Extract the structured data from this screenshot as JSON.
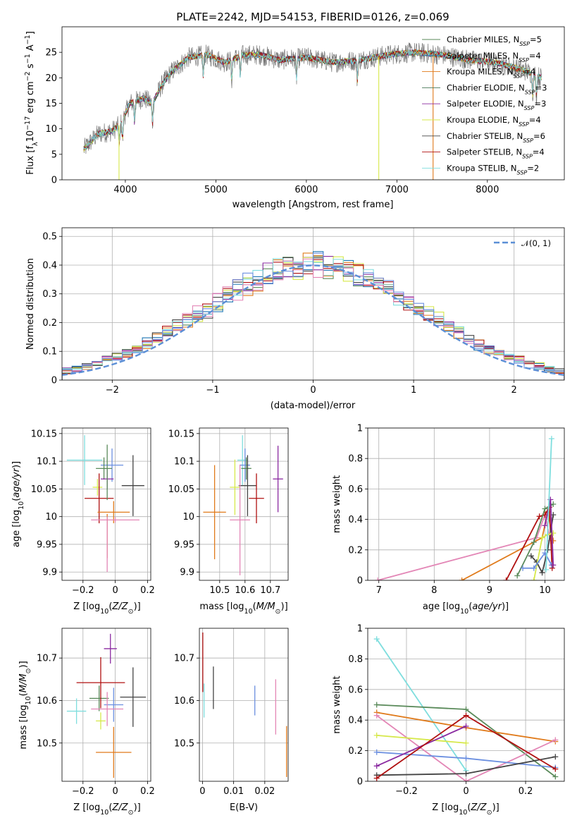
{
  "chart_data": [
    {
      "id": "spectrum",
      "type": "line",
      "title": "PLATE=2242, MJD=54153, FIBERID=0126, z=0.069",
      "xlabel": "wavelength [Angstrom, rest frame]",
      "ylabel": "Flux [f_λ 10⁻¹⁷ erg cm⁻² s⁻¹ A⁻¹]",
      "xlim": [
        3300,
        8850
      ],
      "ylim": [
        0,
        30
      ],
      "xticks": [
        4000,
        5000,
        6000,
        7000,
        8000
      ],
      "yticks": [
        0,
        5,
        10,
        15,
        20,
        25
      ],
      "grid": false,
      "legend_position": "upper-right",
      "series": [
        {
          "name": "Chabrier MILES, N_SSP=5",
          "color": "#5a8a5a"
        },
        {
          "name": "Salpeter MILES, N_SSP=4",
          "color": "#1f77b4"
        },
        {
          "name": "Kroupa MILES, N_SSP=4",
          "color": "#e07a1a"
        },
        {
          "name": "Chabrier ELODIE, N_SSP=3",
          "color": "#4a7a5a"
        },
        {
          "name": "Salpeter ELODIE, N_SSP=3",
          "color": "#8a2aa0"
        },
        {
          "name": "Kroupa ELODIE, N_SSP=4",
          "color": "#d6e84a"
        },
        {
          "name": "Chabrier STELIB, N_SSP=6",
          "color": "#444444"
        },
        {
          "name": "Salpeter STELIB, N_SSP=4",
          "color": "#b01010"
        },
        {
          "name": "Kroupa STELIB, N_SSP=2",
          "color": "#7fdede"
        }
      ],
      "continuum": {
        "x": [
          3540,
          3700,
          3850,
          3950,
          4050,
          4200,
          4300,
          4400,
          4500,
          4700,
          4900,
          5100,
          5300,
          5500,
          5700,
          6000,
          6300,
          6600,
          6900,
          7200,
          7500,
          7800,
          8100,
          8400,
          8600
        ],
        "y": [
          6,
          9,
          9.5,
          11,
          15,
          16,
          15,
          18.5,
          21,
          24,
          24.5,
          23,
          24.5,
          24.5,
          23.5,
          24,
          23,
          23.5,
          24.5,
          25,
          24.5,
          23.5,
          23,
          21.5,
          20
        ]
      }
    },
    {
      "id": "residuals",
      "type": "line",
      "xlabel": "(data-model)/error",
      "ylabel": "Normed distribution",
      "xlim": [
        -2.5,
        2.5
      ],
      "ylim": [
        0,
        0.53
      ],
      "xticks": [
        -2,
        -1,
        0,
        1,
        2
      ],
      "yticks": [
        0.0,
        0.1,
        0.2,
        0.3,
        0.4,
        0.5
      ],
      "grid": true,
      "legend": {
        "label": "𝒩(0, 1)",
        "position": "upper-right"
      },
      "gaussian": {
        "mean": 0,
        "sigma": 1,
        "color": "#5b8fd6"
      },
      "bin_edges": [
        -2.5,
        -2.4,
        -2.3,
        -2.2,
        -2.1,
        -2.0,
        -1.9,
        -1.8,
        -1.7,
        -1.6,
        -1.5,
        -1.4,
        -1.3,
        -1.2,
        -1.1,
        -1.0,
        -0.9,
        -0.8,
        -0.7,
        -0.6,
        -0.5,
        -0.4,
        -0.3,
        -0.2,
        -0.1,
        0.0,
        0.1,
        0.2,
        0.3,
        0.4,
        0.5,
        0.6,
        0.7,
        0.8,
        0.9,
        1.0,
        1.1,
        1.2,
        1.3,
        1.4,
        1.5,
        1.6,
        1.7,
        1.8,
        1.9,
        2.0,
        2.1,
        2.2,
        2.3,
        2.4,
        2.5
      ],
      "histogram_colors": [
        "#5a8a5a",
        "#1f77b4",
        "#e07a1a",
        "#8a2aa0",
        "#d6e84a",
        "#444444",
        "#b01010",
        "#7fdede",
        "#e386b6",
        "#6b8fe0"
      ]
    },
    {
      "id": "age-vs-Z",
      "type": "scatter",
      "xlabel": "Z [log10(Z/Z⊙)]",
      "ylabel": "age  [log10(age/yr)]",
      "xlim": [
        -0.33,
        0.22
      ],
      "ylim": [
        9.885,
        10.16
      ],
      "xticks": [
        -0.2,
        0.0,
        0.2
      ],
      "yticks": [
        9.9,
        9.95,
        10.0,
        10.05,
        10.1,
        10.15
      ],
      "grid": true,
      "points": [
        {
          "x": -0.19,
          "y": 10.102,
          "xerr": 0.11,
          "yerr": 0.045,
          "color": "#7fdede"
        },
        {
          "x": -0.02,
          "y": 10.093,
          "xerr": 0.07,
          "yerr": 0.03,
          "color": "#6b8fe0"
        },
        {
          "x": -0.07,
          "y": 10.087,
          "xerr": 0.05,
          "yerr": 0.02,
          "color": "#5a8a5a"
        },
        {
          "x": -0.05,
          "y": 10.068,
          "xerr": 0.04,
          "yerr": 0.018,
          "color": "#8a2aa0"
        },
        {
          "x": -0.11,
          "y": 10.053,
          "xerr": 0.03,
          "yerr": 0.015,
          "color": "#d6e84a"
        },
        {
          "x": 0.11,
          "y": 10.056,
          "xerr": 0.07,
          "yerr": 0.055,
          "color": "#444444"
        },
        {
          "x": -0.1,
          "y": 10.033,
          "xerr": 0.09,
          "yerr": 0.045,
          "color": "#b01010"
        },
        {
          "x": -0.01,
          "y": 10.008,
          "xerr": 0.1,
          "yerr": 0.02,
          "color": "#e07a1a"
        },
        {
          "x": 0.0,
          "y": 9.994,
          "xerr": 0.15,
          "yerr": 0.005,
          "color": "#e386b6"
        },
        {
          "x": -0.05,
          "y": 9.965,
          "xerr": 0.0,
          "yerr": 0.04,
          "color": "#e07a1a"
        },
        {
          "x": -0.05,
          "y": 9.95,
          "xerr": 0.0,
          "yerr": 0.05,
          "color": "#e386b6"
        },
        {
          "x": -0.05,
          "y": 10.08,
          "xerr": 0.0,
          "yerr": 0.05,
          "color": "#5a8a5a"
        }
      ]
    },
    {
      "id": "age-vs-mass",
      "type": "scatter",
      "xlabel": "mass [log10(M/M⊙)]",
      "xlim": [
        10.42,
        10.77
      ],
      "ylim": [
        9.885,
        10.16
      ],
      "xticks": [
        10.5,
        10.6,
        10.7
      ],
      "yticks": [
        9.9,
        9.95,
        10.0,
        10.05,
        10.1,
        10.15
      ],
      "grid": true,
      "points": [
        {
          "x": 10.59,
          "y": 10.102,
          "xerr": 0.02,
          "yerr": 0.045,
          "color": "#7fdede"
        },
        {
          "x": 10.6,
          "y": 10.093,
          "xerr": 0.02,
          "yerr": 0.03,
          "color": "#6b8fe0"
        },
        {
          "x": 10.605,
          "y": 10.087,
          "xerr": 0.02,
          "yerr": 0.02,
          "color": "#5a8a5a"
        },
        {
          "x": 10.73,
          "y": 10.068,
          "xerr": 0.02,
          "yerr": 0.06,
          "color": "#8a2aa0"
        },
        {
          "x": 10.56,
          "y": 10.053,
          "xerr": 0.02,
          "yerr": 0.05,
          "color": "#d6e84a"
        },
        {
          "x": 10.61,
          "y": 10.056,
          "xerr": 0.035,
          "yerr": 0.055,
          "color": "#444444"
        },
        {
          "x": 10.645,
          "y": 10.033,
          "xerr": 0.03,
          "yerr": 0.045,
          "color": "#b01010"
        },
        {
          "x": 10.48,
          "y": 10.008,
          "xerr": 0.045,
          "yerr": 0.085,
          "color": "#e07a1a"
        },
        {
          "x": 10.58,
          "y": 9.994,
          "xerr": 0.04,
          "yerr": 0.1,
          "color": "#e386b6"
        }
      ]
    },
    {
      "id": "weight-vs-age",
      "type": "line",
      "xlabel": "age  [log10(age/yr)]",
      "ylabel": "mass weight",
      "xlim": [
        6.8,
        10.35
      ],
      "ylim": [
        0,
        1.0
      ],
      "xticks": [
        7,
        8,
        9,
        10
      ],
      "yticks": [
        0.0,
        0.2,
        0.4,
        0.6,
        0.8,
        1.0
      ],
      "grid": true,
      "series": [
        {
          "color": "#e386b6",
          "x": [
            6.98,
            9.85,
            10.0,
            10.1
          ],
          "y": [
            0.0,
            0.28,
            0.43,
            0.26
          ]
        },
        {
          "color": "#e07a1a",
          "x": [
            8.5,
            9.95,
            10.05,
            10.15
          ],
          "y": [
            0.0,
            0.28,
            0.45,
            0.26
          ]
        },
        {
          "color": "#b01010",
          "x": [
            9.3,
            9.9,
            10.0,
            10.08,
            10.13
          ],
          "y": [
            0.0,
            0.42,
            0.43,
            0.48,
            0.08
          ]
        },
        {
          "color": "#5a8a5a",
          "x": [
            9.5,
            9.8,
            10.0,
            10.15
          ],
          "y": [
            0.03,
            0.25,
            0.47,
            0.5
          ]
        },
        {
          "color": "#444444",
          "x": [
            9.75,
            9.85,
            9.95,
            10.05,
            10.15
          ],
          "y": [
            0.16,
            0.12,
            0.05,
            0.2,
            0.43
          ]
        },
        {
          "color": "#d6e84a",
          "x": [
            9.8,
            9.95,
            10.05,
            10.15
          ],
          "y": [
            0.0,
            0.28,
            0.3,
            0.31
          ]
        },
        {
          "color": "#6b8fe0",
          "x": [
            9.6,
            9.8,
            10.0,
            10.12
          ],
          "y": [
            0.08,
            0.08,
            0.18,
            0.1
          ]
        },
        {
          "color": "#8a2aa0",
          "x": [
            10.0,
            10.1,
            10.15
          ],
          "y": [
            0.36,
            0.53,
            0.1
          ]
        },
        {
          "color": "#7fdede",
          "x": [
            10.02,
            10.12
          ],
          "y": [
            0.07,
            0.93
          ]
        }
      ]
    },
    {
      "id": "mass-vs-Z",
      "type": "scatter",
      "xlabel": "Z [log10(Z/Z⊙)]",
      "ylabel": "mass [log10(M/M⊙)]",
      "xlim": [
        -0.33,
        0.22
      ],
      "ylim": [
        10.41,
        10.77
      ],
      "xticks": [
        -0.2,
        0.0,
        0.2
      ],
      "yticks": [
        10.5,
        10.6,
        10.7
      ],
      "grid": true,
      "points": [
        {
          "x": -0.24,
          "y": 10.575,
          "xerr": 0.06,
          "yerr": 0.03,
          "color": "#7fdede"
        },
        {
          "x": -0.01,
          "y": 10.59,
          "xerr": 0.06,
          "yerr": 0.04,
          "color": "#6b8fe0"
        },
        {
          "x": -0.1,
          "y": 10.605,
          "xerr": 0.06,
          "yerr": 0.03,
          "color": "#5a8a5a"
        },
        {
          "x": -0.03,
          "y": 10.722,
          "xerr": 0.04,
          "yerr": 0.035,
          "color": "#8a2aa0"
        },
        {
          "x": -0.09,
          "y": 10.552,
          "xerr": 0.03,
          "yerr": 0.02,
          "color": "#d6e84a"
        },
        {
          "x": 0.11,
          "y": 10.608,
          "xerr": 0.08,
          "yerr": 0.07,
          "color": "#444444"
        },
        {
          "x": -0.09,
          "y": 10.642,
          "xerr": 0.15,
          "yerr": 0.06,
          "color": "#b01010"
        },
        {
          "x": -0.01,
          "y": 10.478,
          "xerr": 0.11,
          "yerr": 0.06,
          "color": "#e07a1a"
        },
        {
          "x": -0.05,
          "y": 10.58,
          "xerr": 0.1,
          "yerr": 0.04,
          "color": "#e386b6"
        }
      ]
    },
    {
      "id": "mass-vs-ebv",
      "type": "scatter",
      "xlabel": "E(B-V)",
      "xlim": [
        -0.001,
        0.0275
      ],
      "ylim": [
        10.41,
        10.77
      ],
      "xticks": [
        0.0,
        0.01,
        0.02
      ],
      "yticks": [
        10.5,
        10.6,
        10.7
      ],
      "grid": true,
      "points": [
        {
          "x": 0.0001,
          "y": 10.69,
          "yerr": 0.07,
          "color": "#b01010"
        },
        {
          "x": 0.0005,
          "y": 10.6,
          "yerr": 0.04,
          "color": "#7fdede"
        },
        {
          "x": 0.0035,
          "y": 10.63,
          "yerr": 0.05,
          "color": "#444444"
        },
        {
          "x": 0.0168,
          "y": 10.6,
          "yerr": 0.035,
          "color": "#6b8fe0"
        },
        {
          "x": 0.0235,
          "y": 10.585,
          "xerr": 0.0,
          "yerr": 0.065,
          "color": "#e386b6"
        },
        {
          "x": 0.027,
          "y": 10.48,
          "yerr": 0.06,
          "color": "#e07a1a"
        }
      ]
    },
    {
      "id": "weight-vs-Z",
      "type": "line",
      "xlabel": "Z [log10(Z/Z⊙)]",
      "ylabel": "mass weight",
      "xlim": [
        -0.33,
        0.33
      ],
      "ylim": [
        0,
        1.0
      ],
      "xticks": [
        -0.2,
        0.0,
        0.2
      ],
      "yticks": [
        0.0,
        0.2,
        0.4,
        0.6,
        0.8,
        1.0
      ],
      "grid": true,
      "series": [
        {
          "color": "#7fdede",
          "x": [
            -0.3,
            0.0
          ],
          "y": [
            0.93,
            0.07
          ]
        },
        {
          "color": "#5a8a5a",
          "x": [
            -0.3,
            0.0,
            0.3
          ],
          "y": [
            0.5,
            0.47,
            0.03
          ]
        },
        {
          "color": "#e07a1a",
          "x": [
            -0.3,
            0.0,
            0.3
          ],
          "y": [
            0.45,
            0.35,
            0.26
          ]
        },
        {
          "color": "#e386b6",
          "x": [
            -0.3,
            0.0,
            0.3
          ],
          "y": [
            0.43,
            0.0,
            0.27
          ]
        },
        {
          "color": "#d6e84a",
          "x": [
            -0.3,
            0.0
          ],
          "y": [
            0.3,
            0.25
          ]
        },
        {
          "color": "#6b8fe0",
          "x": [
            -0.3,
            0.0,
            0.3
          ],
          "y": [
            0.19,
            0.15,
            0.09
          ]
        },
        {
          "color": "#8a2aa0",
          "x": [
            -0.3,
            0.0
          ],
          "y": [
            0.1,
            0.36
          ]
        },
        {
          "color": "#444444",
          "x": [
            -0.3,
            0.0,
            0.3
          ],
          "y": [
            0.04,
            0.05,
            0.16
          ]
        },
        {
          "color": "#b01010",
          "x": [
            -0.3,
            0.0,
            0.3
          ],
          "y": [
            0.02,
            0.43,
            0.08
          ]
        }
      ]
    }
  ]
}
